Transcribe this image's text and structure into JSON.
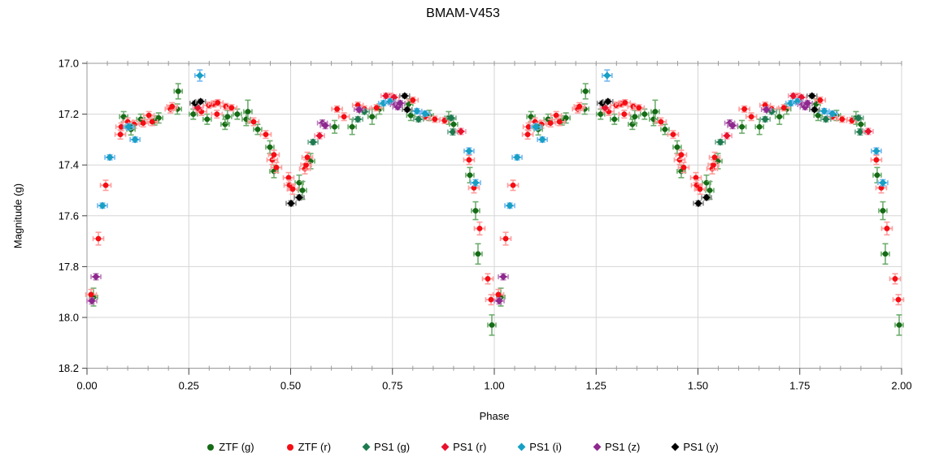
{
  "title": "BMAM-V453",
  "chart_data": {
    "type": "scatter",
    "title": "BMAM-V453",
    "xlabel": "Phase",
    "ylabel": "Magnitude (g)",
    "xlim": [
      0,
      2
    ],
    "ylim": [
      17.0,
      18.2
    ],
    "y_inverted": true,
    "grid": true,
    "legend_position": "bottom",
    "x_tick_labels": [
      "0.00",
      "0.25",
      "0.50",
      "0.75",
      "1.00",
      "1.25",
      "1.50",
      "1.75",
      "2.00"
    ],
    "x_minor_step": 0.05,
    "y_tick_labels": [
      "17.0",
      "17.2",
      "17.4",
      "17.6",
      "17.8",
      "18.0",
      "18.2"
    ],
    "cycle_offsets": [
      0,
      1
    ],
    "colors": {
      "grid": "#d6d6d6",
      "axis": "#9a9a9a",
      "major_tick": "#404040",
      "text": "#000000"
    },
    "series": [
      {
        "name": "ZTF (g)",
        "shape": "circle",
        "color": "#166b16",
        "bar_color": "#6fae6f",
        "ex": 0.01,
        "points": [
          [
            0.016,
            17.92,
            0.035
          ],
          [
            0.09,
            17.21,
            0.02
          ],
          [
            0.108,
            17.26,
            0.022
          ],
          [
            0.132,
            17.22,
            0.02
          ],
          [
            0.166,
            17.225,
            0.018
          ],
          [
            0.176,
            17.215,
            0.02
          ],
          [
            0.222,
            17.18,
            0.02
          ],
          [
            0.224,
            17.11,
            0.03
          ],
          [
            0.261,
            17.2,
            0.02
          ],
          [
            0.295,
            17.22,
            0.02
          ],
          [
            0.339,
            17.24,
            0.02
          ],
          [
            0.345,
            17.21,
            0.025
          ],
          [
            0.369,
            17.2,
            0.02
          ],
          [
            0.391,
            17.22,
            0.025
          ],
          [
            0.395,
            17.19,
            0.045
          ],
          [
            0.419,
            17.26,
            0.02
          ],
          [
            0.449,
            17.33,
            0.025
          ],
          [
            0.459,
            17.425,
            0.025
          ],
          [
            0.521,
            17.47,
            0.03
          ],
          [
            0.529,
            17.5,
            0.035
          ],
          [
            0.549,
            17.385,
            0.03
          ],
          [
            0.608,
            17.25,
            0.025
          ],
          [
            0.651,
            17.25,
            0.03
          ],
          [
            0.7,
            17.21,
            0.03
          ],
          [
            0.718,
            17.18,
            0.02
          ],
          [
            0.79,
            17.16,
            0.02
          ],
          [
            0.795,
            17.205,
            0.02
          ],
          [
            0.84,
            17.205,
            0.02
          ],
          [
            0.888,
            17.215,
            0.025
          ],
          [
            0.9,
            17.24,
            0.02
          ],
          [
            0.94,
            17.44,
            0.03
          ],
          [
            0.954,
            17.58,
            0.035
          ],
          [
            0.96,
            17.75,
            0.04
          ],
          [
            0.994,
            18.03,
            0.04
          ]
        ]
      },
      {
        "name": "ZTF (r)",
        "shape": "circle",
        "color": "#f50d14",
        "bar_color": "#ff9e9e",
        "ex": 0.013,
        "points": [
          [
            0.01,
            17.91,
            0.02
          ],
          [
            0.028,
            17.69,
            0.025
          ],
          [
            0.046,
            17.48,
            0.02
          ],
          [
            0.082,
            17.28,
            0.018
          ],
          [
            0.084,
            17.25,
            0.015
          ],
          [
            0.1,
            17.23,
            0.015
          ],
          [
            0.116,
            17.24,
            0.015
          ],
          [
            0.138,
            17.235,
            0.015
          ],
          [
            0.152,
            17.205,
            0.015
          ],
          [
            0.16,
            17.23,
            0.015
          ],
          [
            0.205,
            17.18,
            0.015
          ],
          [
            0.209,
            17.17,
            0.015
          ],
          [
            0.281,
            17.19,
            0.015
          ],
          [
            0.299,
            17.165,
            0.012
          ],
          [
            0.311,
            17.16,
            0.012
          ],
          [
            0.319,
            17.2,
            0.015
          ],
          [
            0.321,
            17.155,
            0.012
          ],
          [
            0.341,
            17.17,
            0.012
          ],
          [
            0.355,
            17.175,
            0.012
          ],
          [
            0.409,
            17.23,
            0.015
          ],
          [
            0.439,
            17.28,
            0.015
          ],
          [
            0.455,
            17.38,
            0.018
          ],
          [
            0.459,
            17.36,
            0.018
          ],
          [
            0.465,
            17.41,
            0.02
          ],
          [
            0.495,
            17.45,
            0.02
          ],
          [
            0.497,
            17.48,
            0.02
          ],
          [
            0.505,
            17.495,
            0.02
          ],
          [
            0.535,
            17.415,
            0.02
          ],
          [
            0.538,
            17.4,
            0.02
          ],
          [
            0.541,
            17.37,
            0.02
          ],
          [
            0.614,
            17.18,
            0.012
          ],
          [
            0.631,
            17.21,
            0.015
          ],
          [
            0.665,
            17.165,
            0.012
          ],
          [
            0.681,
            17.18,
            0.012
          ],
          [
            0.711,
            17.175,
            0.012
          ],
          [
            0.746,
            17.13,
            0.012
          ],
          [
            0.8,
            17.145,
            0.012
          ],
          [
            0.83,
            17.21,
            0.012
          ],
          [
            0.854,
            17.22,
            0.012
          ],
          [
            0.878,
            17.225,
            0.012
          ],
          [
            0.938,
            17.38,
            0.018
          ],
          [
            0.95,
            17.49,
            0.02
          ],
          [
            0.964,
            17.65,
            0.025
          ],
          [
            0.984,
            17.848,
            0.02
          ],
          [
            0.992,
            17.93,
            0.02
          ]
        ]
      },
      {
        "name": "PS1 (g)",
        "shape": "diamond",
        "color": "#1d7a4f",
        "bar_color": "#76ad93",
        "ex": 0.012,
        "points": [
          [
            0.106,
            17.25,
            0.01
          ],
          [
            0.555,
            17.31,
            0.01
          ],
          [
            0.665,
            17.22,
            0.01
          ],
          [
            0.681,
            17.19,
            0.01
          ],
          [
            0.814,
            17.22,
            0.01
          ],
          [
            0.894,
            17.215,
            0.01
          ],
          [
            0.898,
            17.27,
            0.012
          ]
        ]
      },
      {
        "name": "PS1 (r)",
        "shape": "diamond",
        "color": "#e8112d",
        "bar_color": "#f79db0",
        "ex": 0.012,
        "points": [
          [
            0.272,
            17.175,
            0.01
          ],
          [
            0.571,
            17.285,
            0.012
          ],
          [
            0.734,
            17.128,
            0.01
          ],
          [
            0.754,
            17.134,
            0.01
          ],
          [
            0.918,
            17.268,
            0.012
          ]
        ]
      },
      {
        "name": "PS1 (i)",
        "shape": "diamond",
        "color": "#17a0c4",
        "bar_color": "#74b8f2",
        "ex": 0.012,
        "points": [
          [
            0.038,
            17.56,
            0.01
          ],
          [
            0.056,
            17.37,
            0.01
          ],
          [
            0.102,
            17.25,
            0.012
          ],
          [
            0.118,
            17.3,
            0.01
          ],
          [
            0.277,
            17.048,
            0.022
          ],
          [
            0.728,
            17.157,
            0.01
          ],
          [
            0.744,
            17.15,
            0.01
          ],
          [
            0.81,
            17.188,
            0.01
          ],
          [
            0.83,
            17.198,
            0.01
          ],
          [
            0.938,
            17.345,
            0.012
          ],
          [
            0.954,
            17.47,
            0.012
          ]
        ]
      },
      {
        "name": "PS1 (z)",
        "shape": "diamond",
        "color": "#8e288e",
        "bar_color": "#bd7fbd",
        "ex": 0.012,
        "points": [
          [
            0.012,
            17.935,
            0.012
          ],
          [
            0.022,
            17.84,
            0.012
          ],
          [
            0.578,
            17.235,
            0.012
          ],
          [
            0.585,
            17.245,
            0.012
          ],
          [
            0.668,
            17.182,
            0.01
          ],
          [
            0.757,
            17.163,
            0.01
          ],
          [
            0.763,
            17.172,
            0.01
          ],
          [
            0.769,
            17.157,
            0.01
          ]
        ]
      },
      {
        "name": "PS1 (y)",
        "shape": "diamond",
        "color": "#000000",
        "bar_color": "#8a8a8a",
        "ex": 0.012,
        "points": [
          [
            0.265,
            17.157,
            0.008
          ],
          [
            0.279,
            17.15,
            0.008
          ],
          [
            0.501,
            17.551,
            0.01
          ],
          [
            0.521,
            17.528,
            0.01
          ],
          [
            0.78,
            17.128,
            0.008
          ],
          [
            0.786,
            17.182,
            0.008
          ]
        ]
      }
    ]
  },
  "legend": {
    "items": [
      "ZTF (g)",
      "ZTF (r)",
      "PS1 (g)",
      "PS1 (r)",
      "PS1 (i)",
      "PS1 (z)",
      "PS1 (y)"
    ]
  }
}
